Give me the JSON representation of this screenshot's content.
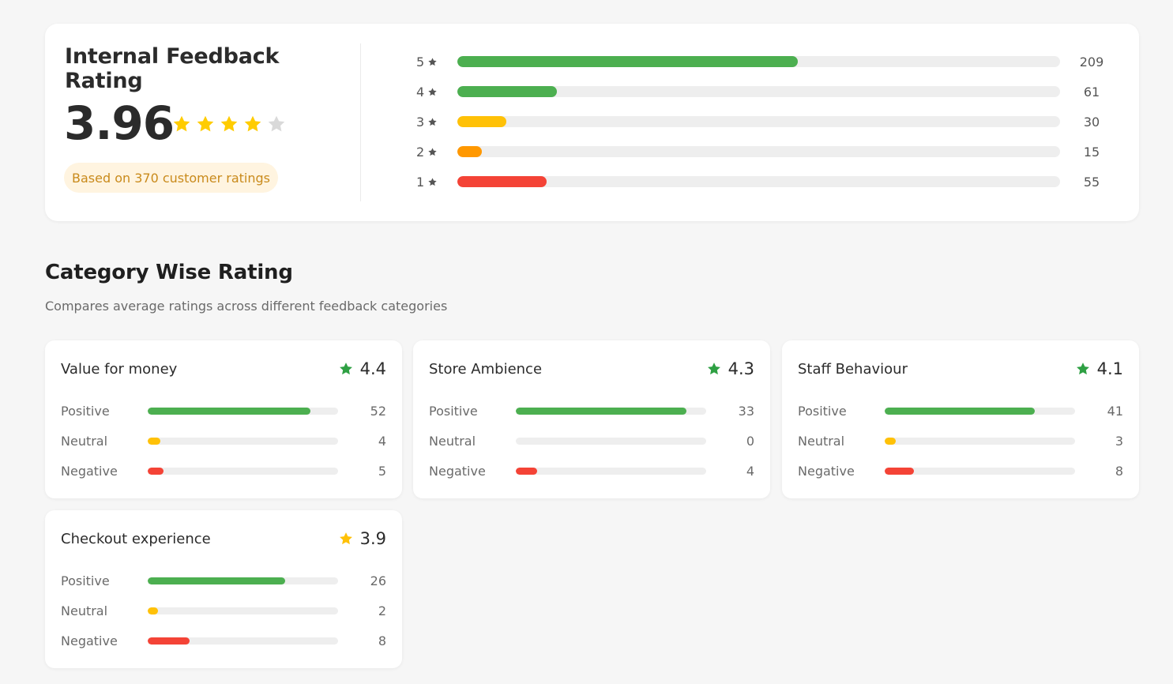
{
  "summary": {
    "title": "Internal Feedback Rating",
    "score": "3.96",
    "score_value": 3.96,
    "max_stars": 5,
    "based_on": "Based on 370 customer ratings",
    "colors": {
      "star_filled": "#ffcc00",
      "star_empty": "#d9d9d9"
    }
  },
  "distribution": {
    "max": 370,
    "rows": [
      {
        "stars": "5",
        "count": "209",
        "value": 209,
        "color": "#4caf50"
      },
      {
        "stars": "4",
        "count": "61",
        "value": 61,
        "color": "#4caf50"
      },
      {
        "stars": "3",
        "count": "30",
        "value": 30,
        "color": "#ffc107"
      },
      {
        "stars": "2",
        "count": "15",
        "value": 15,
        "color": "#ff9800"
      },
      {
        "stars": "1",
        "count": "55",
        "value": 55,
        "color": "#f44336"
      }
    ]
  },
  "category": {
    "title": "Category Wise Rating",
    "subtitle": "Compares average ratings across different feedback categories",
    "colors": {
      "positive": "#4caf50",
      "neutral": "#ffc107",
      "negative": "#f44336"
    },
    "cards": [
      {
        "name": "Value for money",
        "score": "4.4",
        "star_color": "#2ea043",
        "rows": [
          {
            "label": "Positive",
            "count": "52",
            "fraction": 0.855
          },
          {
            "label": "Neutral",
            "count": "4",
            "fraction": 0.066
          },
          {
            "label": "Negative",
            "count": "5",
            "fraction": 0.083
          }
        ]
      },
      {
        "name": "Store Ambience",
        "score": "4.3",
        "star_color": "#2ea043",
        "rows": [
          {
            "label": "Positive",
            "count": "33",
            "fraction": 0.895
          },
          {
            "label": "Neutral",
            "count": "0",
            "fraction": 0
          },
          {
            "label": "Negative",
            "count": "4",
            "fraction": 0.11
          }
        ]
      },
      {
        "name": "Staff Behaviour",
        "score": "4.1",
        "star_color": "#2ea043",
        "rows": [
          {
            "label": "Positive",
            "count": "41",
            "fraction": 0.79
          },
          {
            "label": "Neutral",
            "count": "3",
            "fraction": 0.058
          },
          {
            "label": "Negative",
            "count": "8",
            "fraction": 0.154
          }
        ]
      },
      {
        "name": "Checkout experience",
        "score": "3.9",
        "star_color": "#ffc107",
        "rows": [
          {
            "label": "Positive",
            "count": "26",
            "fraction": 0.72
          },
          {
            "label": "Neutral",
            "count": "2",
            "fraction": 0.055
          },
          {
            "label": "Negative",
            "count": "8",
            "fraction": 0.22
          }
        ]
      }
    ]
  }
}
